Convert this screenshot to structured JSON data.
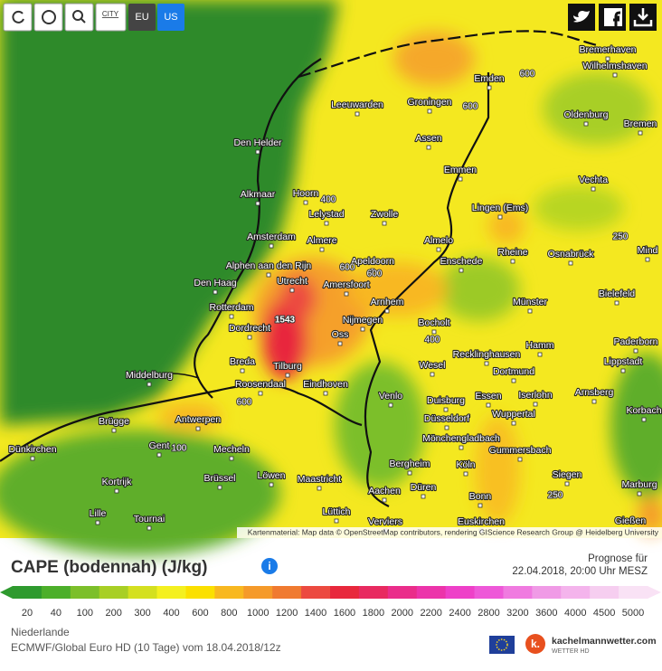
{
  "toolbar": {
    "city": "CITY",
    "eu": "EU",
    "us": "US"
  },
  "map": {
    "cities": [
      "Bremerhaven",
      "Wilhelmshaven",
      "Emden",
      "Leeuwarden",
      "Groningen",
      "Oldenburg",
      "Bremen",
      "Assen",
      "Den Helder",
      "Emmen",
      "Vechta",
      "Alkmaar",
      "Hoorn",
      "Lelystad",
      "Zwolle",
      "Lingen (Ems)",
      "Amsterdam",
      "Almere",
      "Almelo",
      "Rheine",
      "Osnabrück",
      "Alphen aan den Rijn",
      "Mind",
      "Apeldoorn",
      "Enschede",
      "Den Haag",
      "Utrecht",
      "Amersfoort",
      "Bielefeld",
      "Rotterdam",
      "Arnhem",
      "Münster",
      "Nijmegen",
      "Bocholt",
      "Dordrecht",
      "Oss",
      "Hamm",
      "Paderborn",
      "Recklinghausen",
      "Lippstadt",
      "Breda",
      "Tilburg",
      "Middelburg",
      "Wesel",
      "Dortmund",
      "Roosendaal",
      "Eindhoven",
      "Arnsberg",
      "Iserlohn",
      "Essen",
      "Duisburg",
      "Venlo",
      "Antwerpen",
      "Brügge",
      "Korbach",
      "Düsseldorf",
      "Wuppertal",
      "Mönchengladbach",
      "Gent",
      "Dünkirchen",
      "Mecheln",
      "Gummersbach",
      "Bergheim",
      "Köln",
      "Kortrijk",
      "Brüssel",
      "Löwen",
      "Maastricht",
      "Siegen",
      "Marburg",
      "Aachen",
      "Düren",
      "Bonn",
      "Lille",
      "Tournai",
      "Lüttich",
      "Verviers",
      "Euskirchen",
      "Gießen"
    ],
    "contour_labels": [
      "600",
      "600",
      "400",
      "600",
      "600",
      "250",
      "1543",
      "400",
      "600",
      "100",
      "250"
    ],
    "attribution": "Kartenmaterial: Map data © OpenStreetMap contributors, rendering GIScience Research Group @ Heidelberg University"
  },
  "legend": {
    "title": "CAPE (bodennah) (J/kg)",
    "forecast_label": "Prognose für",
    "forecast_time": "22.04.2018, 20:00 Uhr MESZ",
    "stops": [
      {
        "value": 20,
        "color": "#2e9a2e"
      },
      {
        "value": 40,
        "color": "#4caf2a"
      },
      {
        "value": 100,
        "color": "#7cbf2a"
      },
      {
        "value": 200,
        "color": "#a8cf25"
      },
      {
        "value": 300,
        "color": "#d4e020"
      },
      {
        "value": 400,
        "color": "#f4f020"
      },
      {
        "value": 600,
        "color": "#fbe000"
      },
      {
        "value": 800,
        "color": "#f8b820"
      },
      {
        "value": 1000,
        "color": "#f59a2a"
      },
      {
        "value": 1200,
        "color": "#f07a30"
      },
      {
        "value": 1400,
        "color": "#ec4a40"
      },
      {
        "value": 1600,
        "color": "#e8283c"
      },
      {
        "value": 1800,
        "color": "#e82a60"
      },
      {
        "value": 2000,
        "color": "#ea2d8a"
      },
      {
        "value": 2200,
        "color": "#ec34aa"
      },
      {
        "value": 2400,
        "color": "#ee40c8"
      },
      {
        "value": 2800,
        "color": "#ee58d8"
      },
      {
        "value": 3200,
        "color": "#f07ae0"
      },
      {
        "value": 3600,
        "color": "#f09ae6"
      },
      {
        "value": 4000,
        "color": "#f4b4ec"
      },
      {
        "value": 4500,
        "color": "#f6cef0"
      },
      {
        "value": 5000,
        "color": "#f9e2f5"
      }
    ]
  },
  "footer": {
    "region": "Niederlande",
    "model": "ECMWF/Global Euro HD (10 Tage) vom 18.04.2018/12z",
    "logo": "k.",
    "brand": "kachelmannwetter.com",
    "brand_sub": "WETTER HD"
  }
}
